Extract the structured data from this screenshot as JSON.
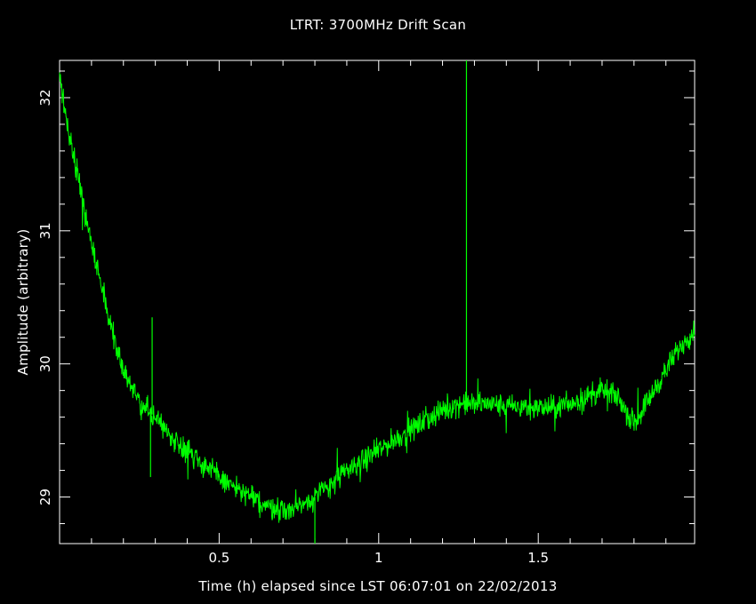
{
  "colors": {
    "background": "#000000",
    "axes": "#ffffff",
    "trace": "#00ff00"
  },
  "chart_data": {
    "type": "line",
    "title": "LTRT: 3700MHz Drift Scan",
    "xlabel": "Time (h) elapsed since LST 06:07:01 on 22/02/2013",
    "ylabel": "Amplitude (arbitrary)",
    "xlim": [
      0,
      1.99
    ],
    "ylim": [
      28.65,
      32.28
    ],
    "x_ticks": [
      0.5,
      1,
      1.5
    ],
    "x_tick_labels": [
      "0.5",
      "1",
      "1.5"
    ],
    "y_ticks": [
      29,
      30,
      31,
      32
    ],
    "y_tick_labels": [
      "29",
      "30",
      "31",
      "32"
    ],
    "grid": false,
    "series": [
      {
        "color": "#00ff00",
        "x": [
          0,
          0.02,
          0.05,
          0.08,
          0.11,
          0.15,
          0.2,
          0.25,
          0.3,
          0.35,
          0.4,
          0.45,
          0.5,
          0.55,
          0.6,
          0.65,
          0.7,
          0.75,
          0.8,
          0.85,
          0.9,
          0.95,
          1.0,
          1.05,
          1.1,
          1.15,
          1.2,
          1.25,
          1.3,
          1.35,
          1.4,
          1.45,
          1.5,
          1.55,
          1.6,
          1.65,
          1.7,
          1.75,
          1.8,
          1.85,
          1.9,
          1.95,
          1.99
        ],
        "y": [
          32.15,
          31.85,
          31.5,
          31.15,
          30.8,
          30.4,
          29.95,
          29.7,
          29.6,
          29.45,
          29.35,
          29.25,
          29.15,
          29.07,
          29.0,
          28.93,
          28.9,
          28.93,
          29.0,
          29.1,
          29.2,
          29.27,
          29.35,
          29.43,
          29.5,
          29.58,
          29.65,
          29.7,
          29.7,
          29.7,
          29.68,
          29.68,
          29.67,
          29.67,
          29.7,
          29.75,
          29.8,
          29.75,
          29.55,
          29.75,
          29.95,
          30.15,
          30.25
        ],
        "spikes": [
          {
            "x": 1.275,
            "y": 32.28
          },
          {
            "x": 0.8,
            "y": 28.65
          },
          {
            "x": 0.29,
            "y": 30.35
          },
          {
            "x": 0.285,
            "y": 29.15
          }
        ]
      }
    ]
  }
}
